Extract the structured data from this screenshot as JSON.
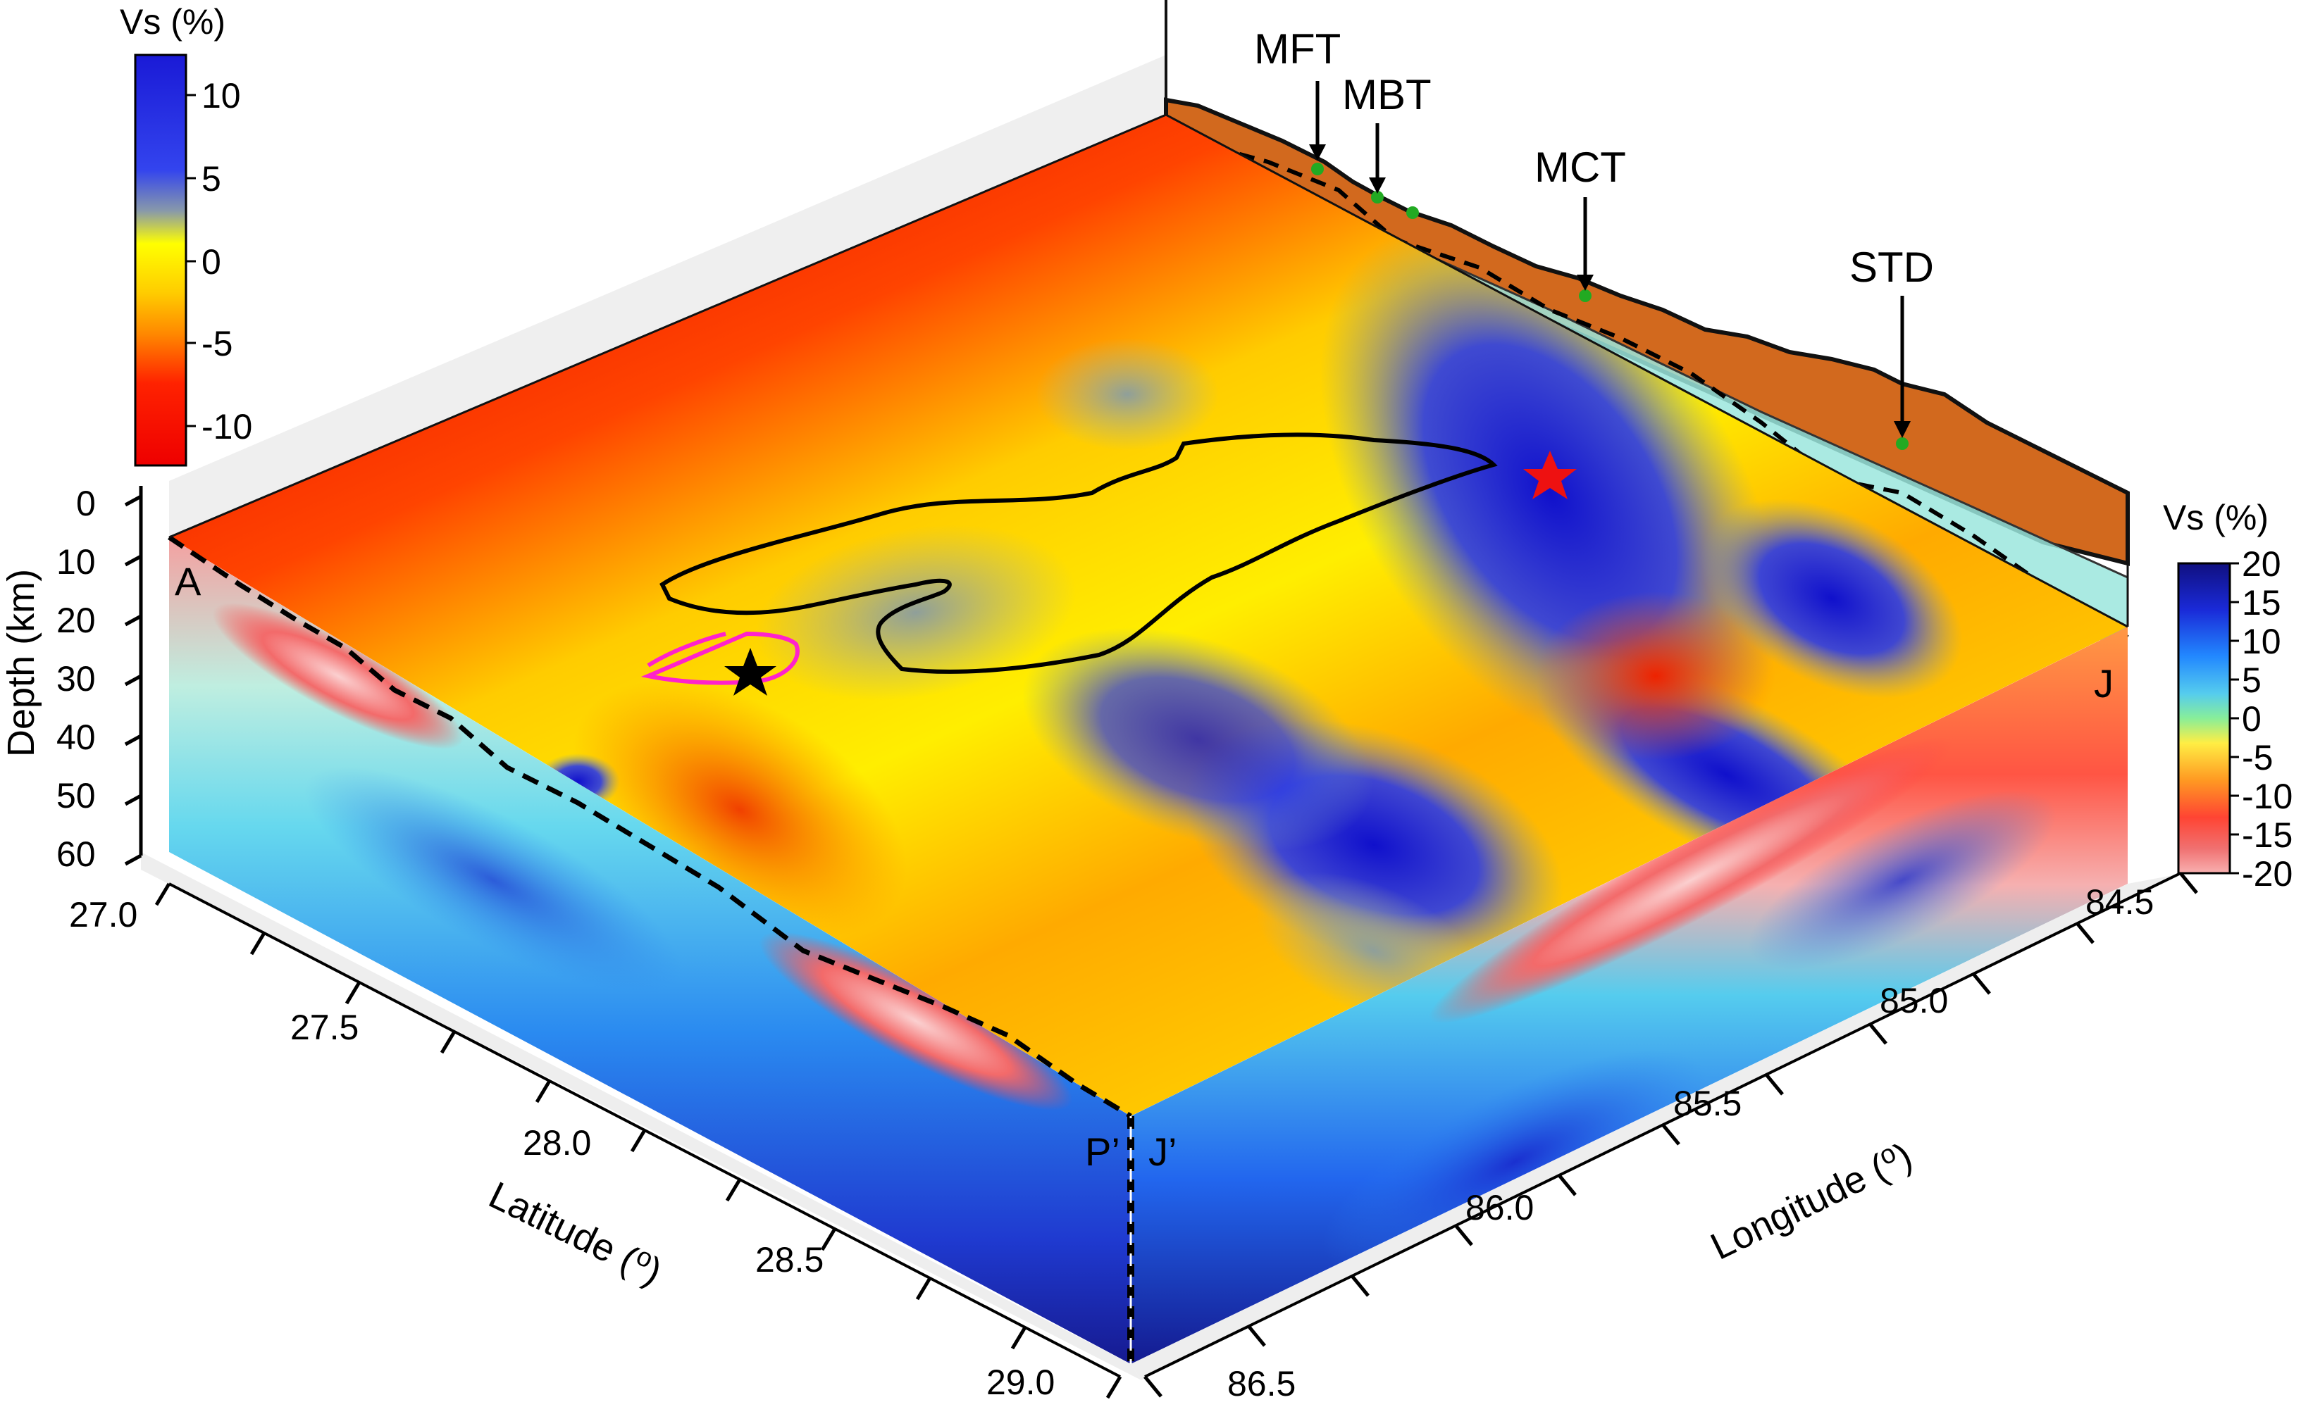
{
  "top_colorbar": {
    "title": "Vs (%)",
    "ticks": [
      "10",
      "5",
      "0",
      "-5",
      "-10"
    ]
  },
  "side_colorbar": {
    "title": "Vs (%)",
    "ticks": [
      "20",
      "15",
      "10",
      "5",
      "0",
      "-5",
      "-10",
      "-15",
      "-20"
    ]
  },
  "depth_axis": {
    "label": "Depth (km)",
    "ticks": [
      "0",
      "10",
      "20",
      "30",
      "40",
      "50",
      "60"
    ]
  },
  "latitude_axis": {
    "label": "Latitude (",
    "unit": "o",
    "label_end": ")",
    "ticks": [
      "27.0",
      "27.5",
      "28.0",
      "28.5",
      "29.0"
    ]
  },
  "longitude_axis": {
    "label": "Longitude (",
    "unit": "o",
    "label_end": ")",
    "ticks": [
      "84.5",
      "85.0",
      "85.5",
      "86.0",
      "86.5"
    ]
  },
  "faults": [
    {
      "name": "MFT"
    },
    {
      "name": "MBT"
    },
    {
      "name": "MCT"
    },
    {
      "name": "STD"
    }
  ],
  "section_labels": {
    "a": "A",
    "p_prime": "P’",
    "j_prime": "J’",
    "j": "J"
  },
  "colors": {
    "topography": "#d2691e",
    "main_shock_star": "#ee1111",
    "aftershock_star": "#000000",
    "rupture_outline": "#000000",
    "secondary_outline": "#ff22cc",
    "fault_marker": "#22aa22"
  }
}
